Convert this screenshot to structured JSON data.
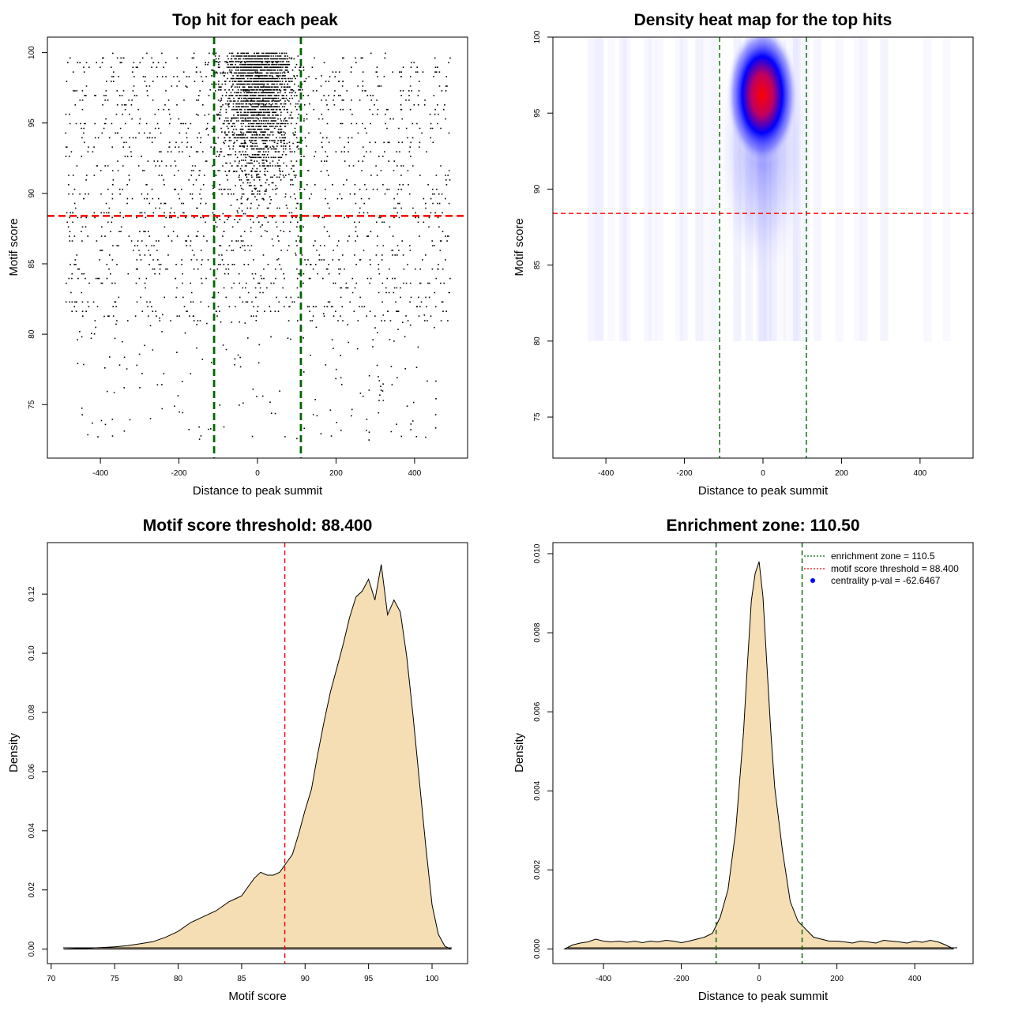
{
  "chart_data": [
    {
      "type": "scatter",
      "title": "Top hit for each peak",
      "xlabel": "Distance to peak summit",
      "ylabel": "Motif score",
      "xlim": [
        -500,
        500
      ],
      "ylim": [
        72,
        100
      ],
      "xticks": [
        -400,
        -200,
        0,
        200,
        400
      ],
      "yticks": [
        75,
        80,
        85,
        90,
        95,
        100
      ],
      "reference_lines": {
        "vertical": [
          -110.5,
          110.5
        ],
        "horizontal": [
          88.4
        ],
        "vertical_color": "#006400",
        "horizontal_color": "#ff0000"
      },
      "point_color": "#000000",
      "points_summary": "thousands of points; dense band centred at distance 0 for scores above ~88; sparse uniform scatter across -500..500 at lower scores"
    },
    {
      "type": "heatmap",
      "title": "Density heat map for the top hits",
      "xlabel": "Distance to peak summit",
      "ylabel": "Motif score",
      "xlim": [
        -500,
        500
      ],
      "ylim": [
        72,
        100
      ],
      "xticks": [
        -400,
        -200,
        0,
        200,
        400
      ],
      "yticks": [
        75,
        80,
        85,
        90,
        95,
        100
      ],
      "colors": [
        "#ffffff",
        "#0000ff",
        "#ff0000"
      ],
      "peak": {
        "x": 0,
        "y": 96.5
      },
      "reference_lines": {
        "vertical": [
          -110.5,
          110.5
        ],
        "horizontal": [
          88.4
        ],
        "vertical_color": "#006400",
        "horizontal_color": "#ff0000"
      }
    },
    {
      "type": "area",
      "title": "Motif score threshold: 88.400",
      "xlabel": "Motif score",
      "ylabel": "Density",
      "xlim": [
        70,
        101.5
      ],
      "ylim": [
        0,
        0.13
      ],
      "xticks": [
        70,
        75,
        80,
        85,
        90,
        95,
        100
      ],
      "yticks": [
        0.0,
        0.02,
        0.04,
        0.06,
        0.08,
        0.1,
        0.12
      ],
      "ytick_labels": [
        "0.00",
        "0.02",
        "0.04",
        "0.06",
        "0.08",
        "0.10",
        "0.12"
      ],
      "fill_color": "#f5deb3",
      "x": [
        71,
        73,
        75,
        76,
        77,
        78,
        79,
        80,
        81,
        82,
        83,
        84,
        84.5,
        85,
        85.5,
        86,
        86.5,
        87,
        87.5,
        88,
        88.5,
        89,
        89.5,
        90,
        90.5,
        91,
        91.5,
        92,
        92.5,
        93,
        93.5,
        94,
        94.5,
        95,
        95.5,
        96,
        96.5,
        97,
        97.5,
        98,
        98.5,
        99,
        99.5,
        100,
        100.5,
        101,
        101.5
      ],
      "y": [
        0.0,
        0.0003,
        0.0008,
        0.0012,
        0.0018,
        0.0025,
        0.004,
        0.006,
        0.009,
        0.011,
        0.013,
        0.016,
        0.017,
        0.018,
        0.021,
        0.024,
        0.026,
        0.025,
        0.025,
        0.026,
        0.029,
        0.032,
        0.039,
        0.047,
        0.054,
        0.066,
        0.077,
        0.087,
        0.095,
        0.103,
        0.112,
        0.119,
        0.121,
        0.125,
        0.118,
        0.13,
        0.113,
        0.118,
        0.114,
        0.099,
        0.079,
        0.057,
        0.035,
        0.015,
        0.005,
        0.001,
        0.0
      ],
      "reference_lines": {
        "vertical": [
          88.4
        ],
        "vertical_color": "#ff0000"
      }
    },
    {
      "type": "area",
      "title": "Enrichment zone: 110.50",
      "xlabel": "Distance to peak summit",
      "ylabel": "Density",
      "xlim": [
        -500,
        500
      ],
      "ylim": [
        0,
        0.01
      ],
      "xticks": [
        -400,
        -200,
        0,
        200,
        400
      ],
      "yticks": [
        0.0,
        0.002,
        0.004,
        0.006,
        0.008,
        0.01
      ],
      "ytick_labels": [
        "0.000",
        "0.002",
        "0.004",
        "0.006",
        "0.008",
        "0.010"
      ],
      "fill_color": "#f5deb3",
      "x": [
        -500,
        -480,
        -460,
        -440,
        -420,
        -400,
        -380,
        -360,
        -340,
        -320,
        -300,
        -280,
        -260,
        -240,
        -220,
        -200,
        -180,
        -160,
        -140,
        -120,
        -100,
        -80,
        -60,
        -40,
        -30,
        -20,
        -10,
        0,
        10,
        20,
        30,
        40,
        60,
        80,
        100,
        120,
        140,
        160,
        180,
        200,
        220,
        240,
        260,
        280,
        300,
        320,
        340,
        360,
        380,
        400,
        420,
        440,
        460,
        480,
        500
      ],
      "y": [
        0.0,
        0.0001,
        0.00015,
        0.00018,
        0.00025,
        0.0002,
        0.00018,
        0.0002,
        0.00017,
        0.0002,
        0.00016,
        0.0002,
        0.00018,
        0.00022,
        0.0002,
        0.00016,
        0.0002,
        0.00025,
        0.0003,
        0.0004,
        0.0008,
        0.0015,
        0.003,
        0.0055,
        0.0072,
        0.0088,
        0.0095,
        0.0098,
        0.0089,
        0.0072,
        0.0055,
        0.0041,
        0.0025,
        0.0012,
        0.0007,
        0.0005,
        0.0003,
        0.00025,
        0.0002,
        0.0002,
        0.00018,
        0.00015,
        0.0002,
        0.00018,
        0.00015,
        0.00022,
        0.0002,
        0.00018,
        0.00015,
        0.0002,
        0.00017,
        0.00022,
        0.00018,
        0.0001,
        0.0
      ],
      "reference_lines": {
        "vertical": [
          -110.5,
          110.5
        ],
        "vertical_color": "#006400"
      },
      "legend": {
        "placement": "top-right",
        "entries": [
          {
            "label": "enrichment zone = 110.5",
            "color": "#006400",
            "style": "dotted-line"
          },
          {
            "label": "motif score threshold = 88.400",
            "color": "#ff0000",
            "style": "dotted-line"
          },
          {
            "label": "centrality p-val = -62.6467",
            "color": "#0000ff",
            "style": "point"
          }
        ]
      }
    }
  ]
}
